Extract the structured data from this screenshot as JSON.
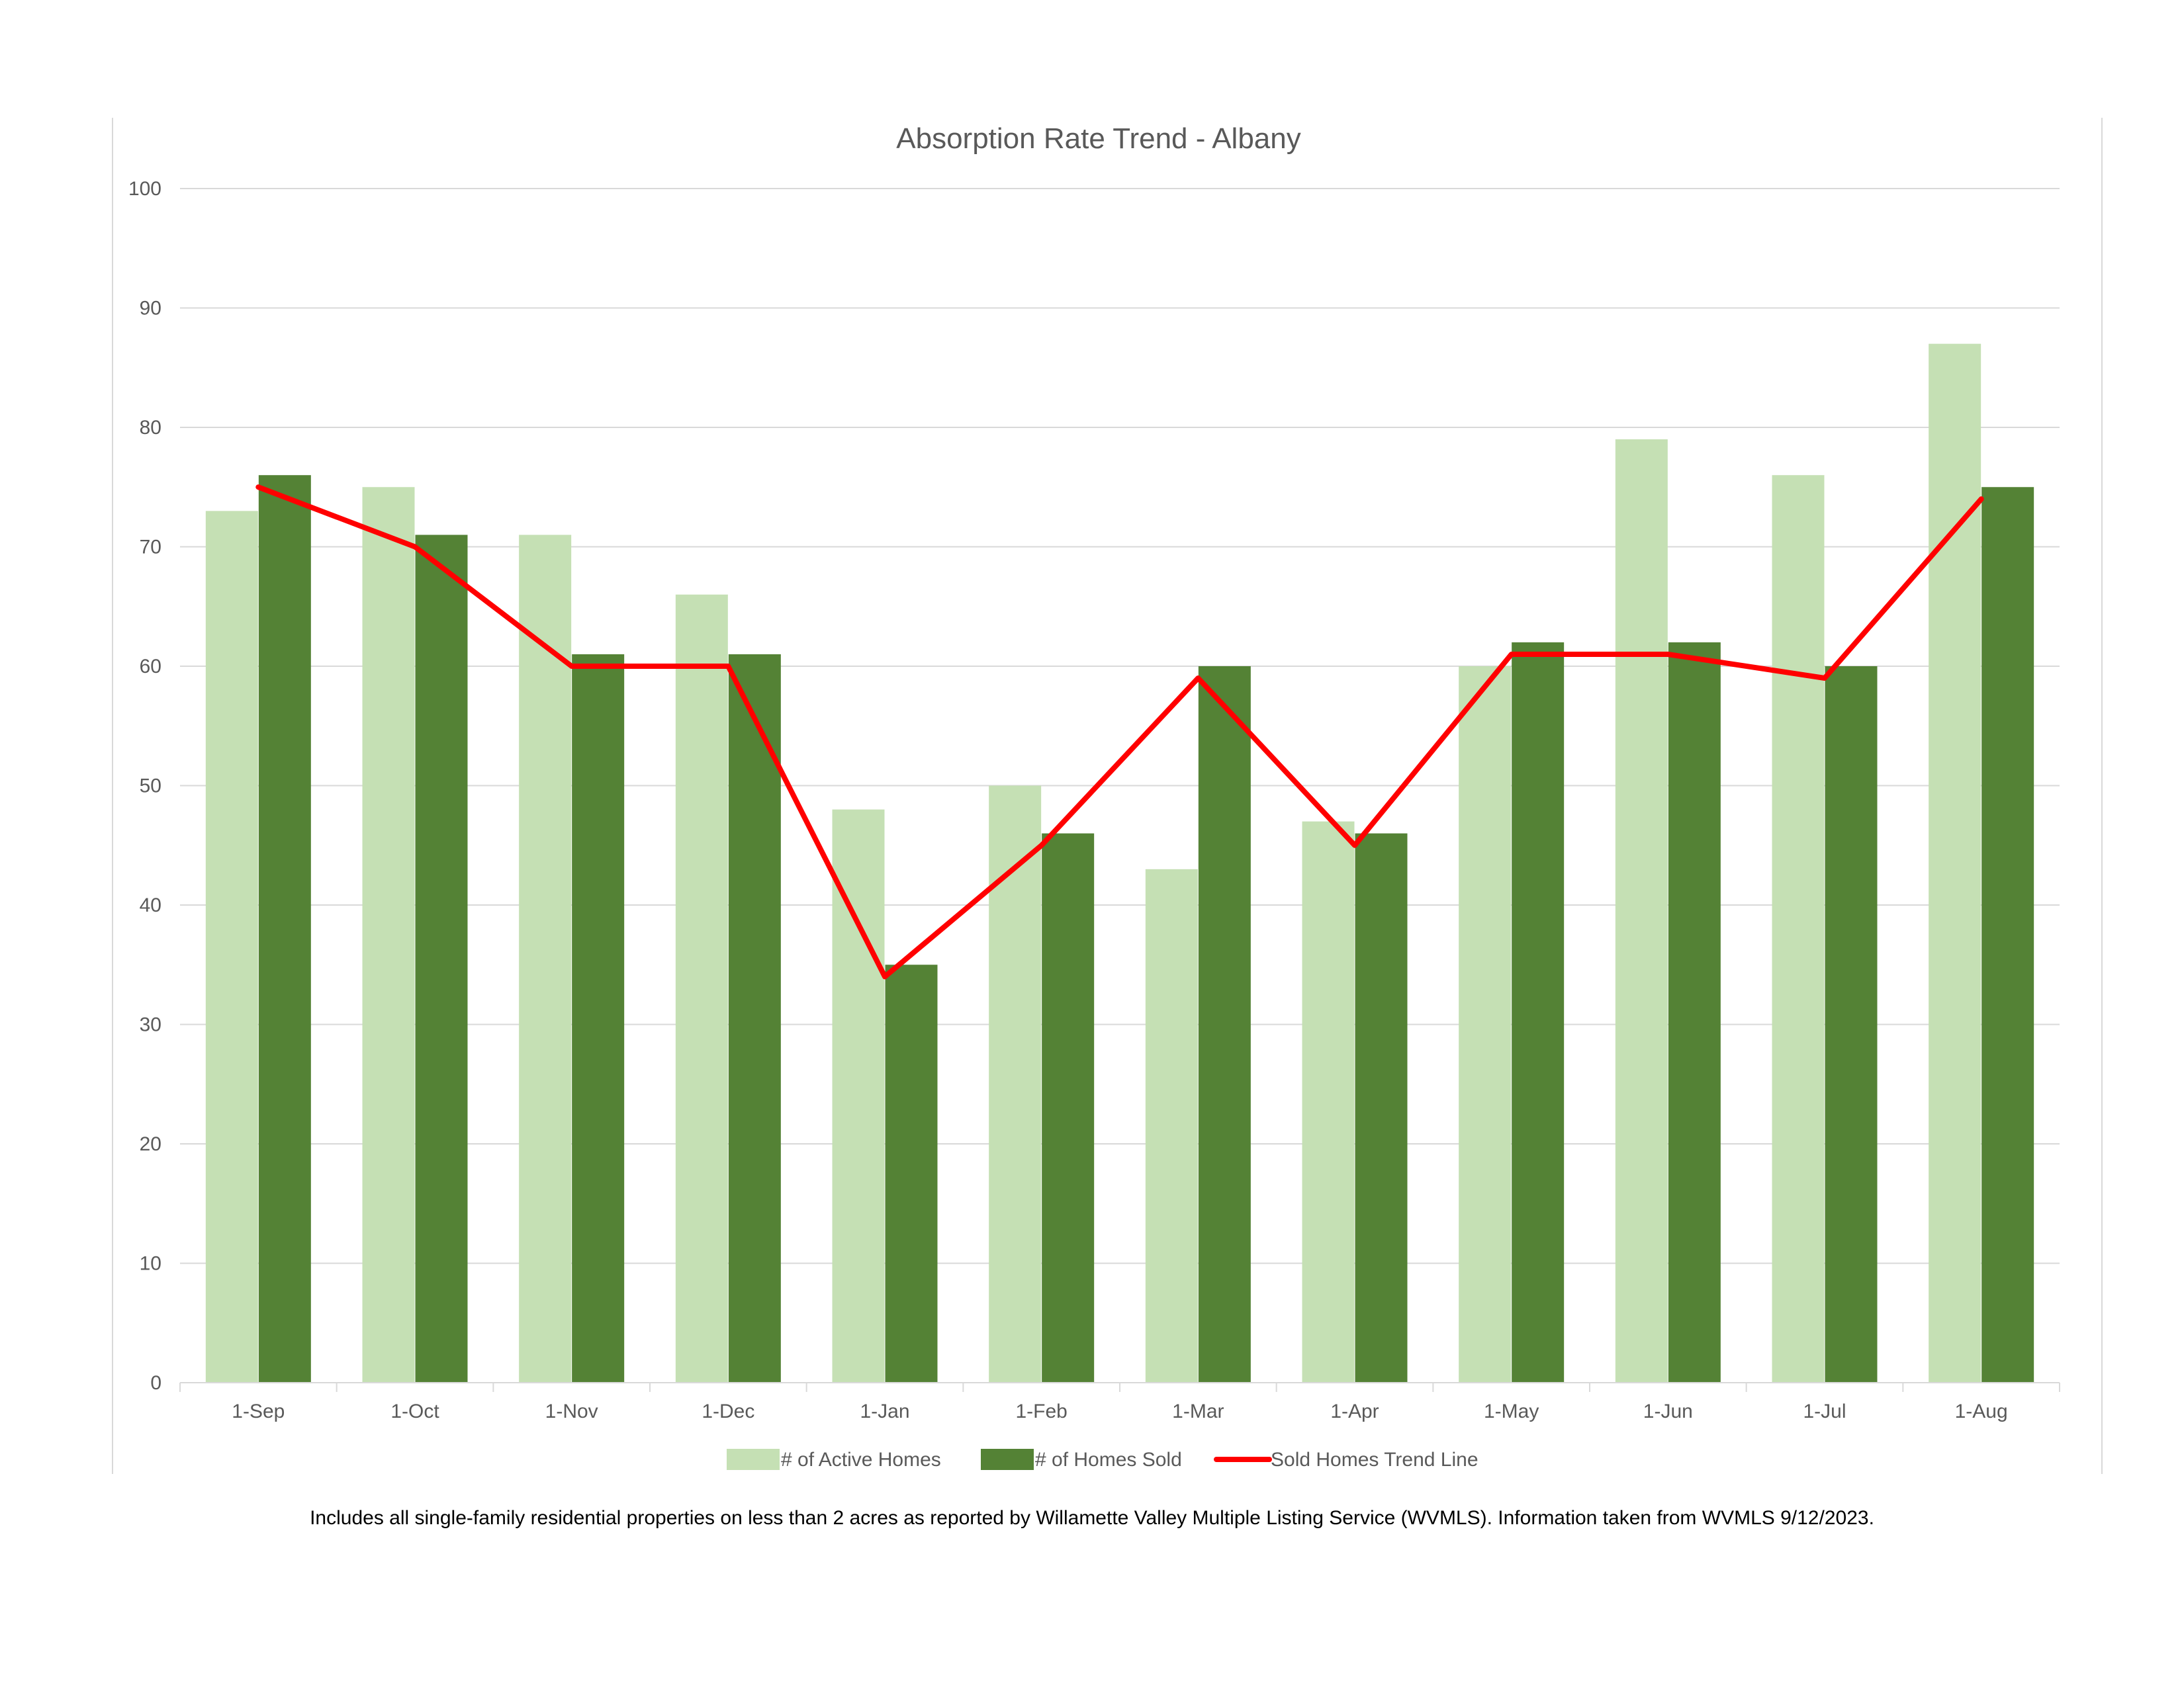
{
  "chart_data": {
    "type": "bar",
    "title": "Absorption Rate Trend - Albany",
    "xlabel": "",
    "ylabel": "",
    "ylim": [
      0,
      100
    ],
    "yticks": [
      0,
      10,
      20,
      30,
      40,
      50,
      60,
      70,
      80,
      90,
      100
    ],
    "grid": true,
    "legend_position": "bottom",
    "categories": [
      "1-Sep",
      "1-Oct",
      "1-Nov",
      "1-Dec",
      "1-Jan",
      "1-Feb",
      "1-Mar",
      "1-Apr",
      "1-May",
      "1-Jun",
      "1-Jul",
      "1-Aug"
    ],
    "series": [
      {
        "name": "# of Active Homes",
        "kind": "bar",
        "color": "#c5e0b4",
        "values": [
          73,
          75,
          71,
          66,
          48,
          50,
          43,
          47,
          60,
          79,
          76,
          87
        ]
      },
      {
        "name": "# of Homes Sold",
        "kind": "bar",
        "color": "#548235",
        "values": [
          76,
          71,
          61,
          61,
          35,
          46,
          60,
          46,
          62,
          62,
          60,
          75
        ]
      },
      {
        "name": "Sold Homes Trend Line",
        "kind": "line",
        "color": "#ff0000",
        "values": [
          75,
          70,
          60,
          60,
          34,
          45,
          59,
          45,
          61,
          61,
          59,
          74
        ]
      }
    ]
  },
  "footnote": "Includes all single-family residential properties on less than 2 acres as reported by Willamette Valley Multiple Listing Service (WVMLS). Information taken from WVMLS 9/12/2023."
}
